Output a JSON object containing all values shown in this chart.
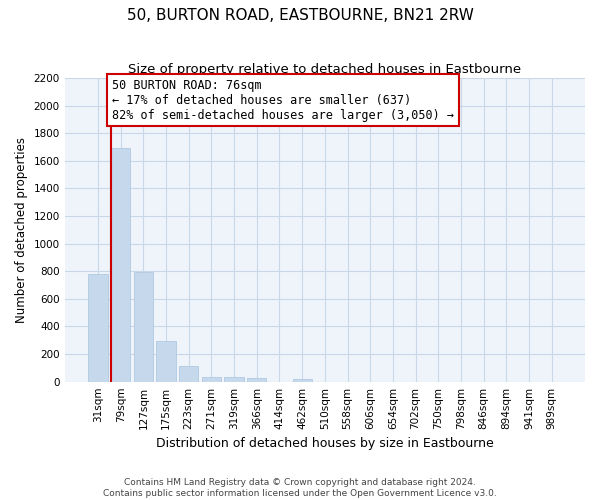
{
  "title": "50, BURTON ROAD, EASTBOURNE, BN21 2RW",
  "subtitle": "Size of property relative to detached houses in Eastbourne",
  "xlabel": "Distribution of detached houses by size in Eastbourne",
  "ylabel": "Number of detached properties",
  "categories": [
    "31sqm",
    "79sqm",
    "127sqm",
    "175sqm",
    "223sqm",
    "271sqm",
    "319sqm",
    "366sqm",
    "414sqm",
    "462sqm",
    "510sqm",
    "558sqm",
    "606sqm",
    "654sqm",
    "702sqm",
    "750sqm",
    "798sqm",
    "846sqm",
    "894sqm",
    "941sqm",
    "989sqm"
  ],
  "values": [
    780,
    1690,
    795,
    295,
    110,
    37,
    37,
    30,
    0,
    22,
    0,
    0,
    0,
    0,
    0,
    0,
    0,
    0,
    0,
    0,
    0
  ],
  "bar_color": "#c5d8ec",
  "bar_edge_color": "#a8c4de",
  "annotation_line1": "50 BURTON ROAD: 76sqm",
  "annotation_line2": "← 17% of detached houses are smaller (637)",
  "annotation_line3": "82% of semi-detached houses are larger (3,050) →",
  "ylim_max": 2200,
  "yticks": [
    0,
    200,
    400,
    600,
    800,
    1000,
    1200,
    1400,
    1600,
    1800,
    2000,
    2200
  ],
  "footer_line1": "Contains HM Land Registry data © Crown copyright and database right 2024.",
  "footer_line2": "Contains public sector information licensed under the Open Government Licence v3.0.",
  "grid_color": "#c8d8e8",
  "bg_color": "#eef4fa",
  "annotation_rect_color": "#ffffff",
  "annotation_rect_edge": "#cc0000",
  "property_line_color": "#cc0000",
  "title_fontsize": 11,
  "subtitle_fontsize": 9.5,
  "xlabel_fontsize": 9,
  "ylabel_fontsize": 8.5,
  "tick_fontsize": 7.5,
  "annotation_fontsize": 8.5,
  "footer_fontsize": 6.5
}
